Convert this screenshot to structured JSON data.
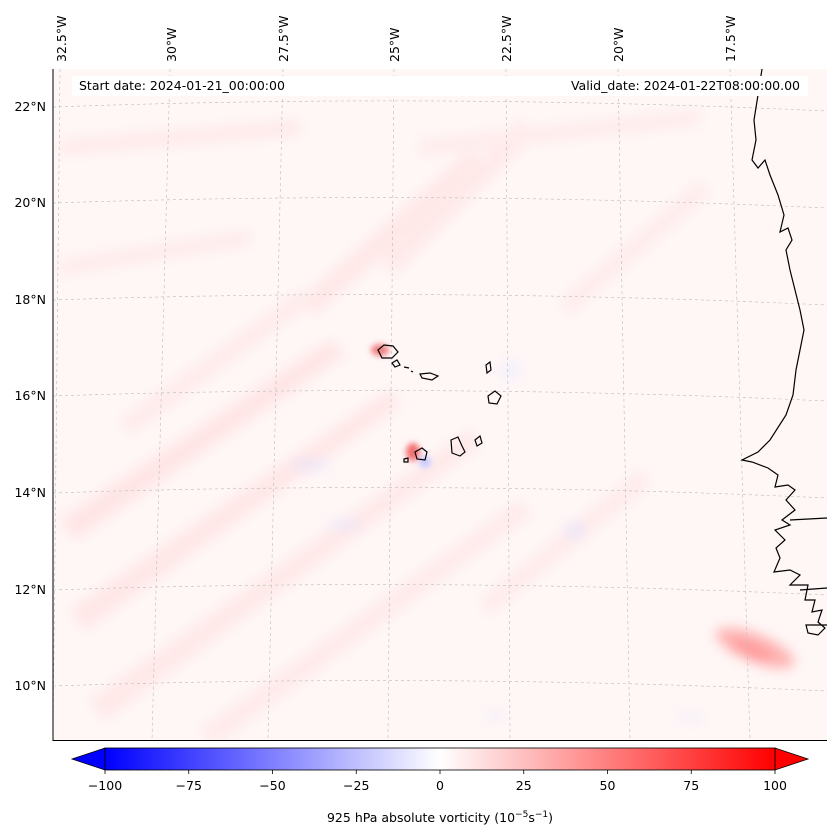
{
  "map": {
    "start_label": "Start date: 2024-01-21_00:00:00",
    "valid_label": "Valid_date: 2024-01-22T08:00:00.00",
    "lon_labels": [
      "32.5°W",
      "30°W",
      "27.5°W",
      "25°W",
      "22.5°W",
      "20°W",
      "17.5°W"
    ],
    "lat_labels": [
      "22°N",
      "20°N",
      "18°N",
      "16°N",
      "14°N",
      "12°N",
      "10°N"
    ]
  },
  "colorbar": {
    "ticks": [
      "−100",
      "−75",
      "−50",
      "−25",
      "0",
      "25",
      "50",
      "75",
      "100"
    ],
    "label_main": "925 hPa absolute vorticity (10",
    "label_exp1": "−5",
    "label_mid": "s",
    "label_exp2": "−1",
    "label_end": ")",
    "colors": {
      "neg": "#0000ff",
      "zero": "#ffffff",
      "pos": "#ff0000"
    }
  }
}
